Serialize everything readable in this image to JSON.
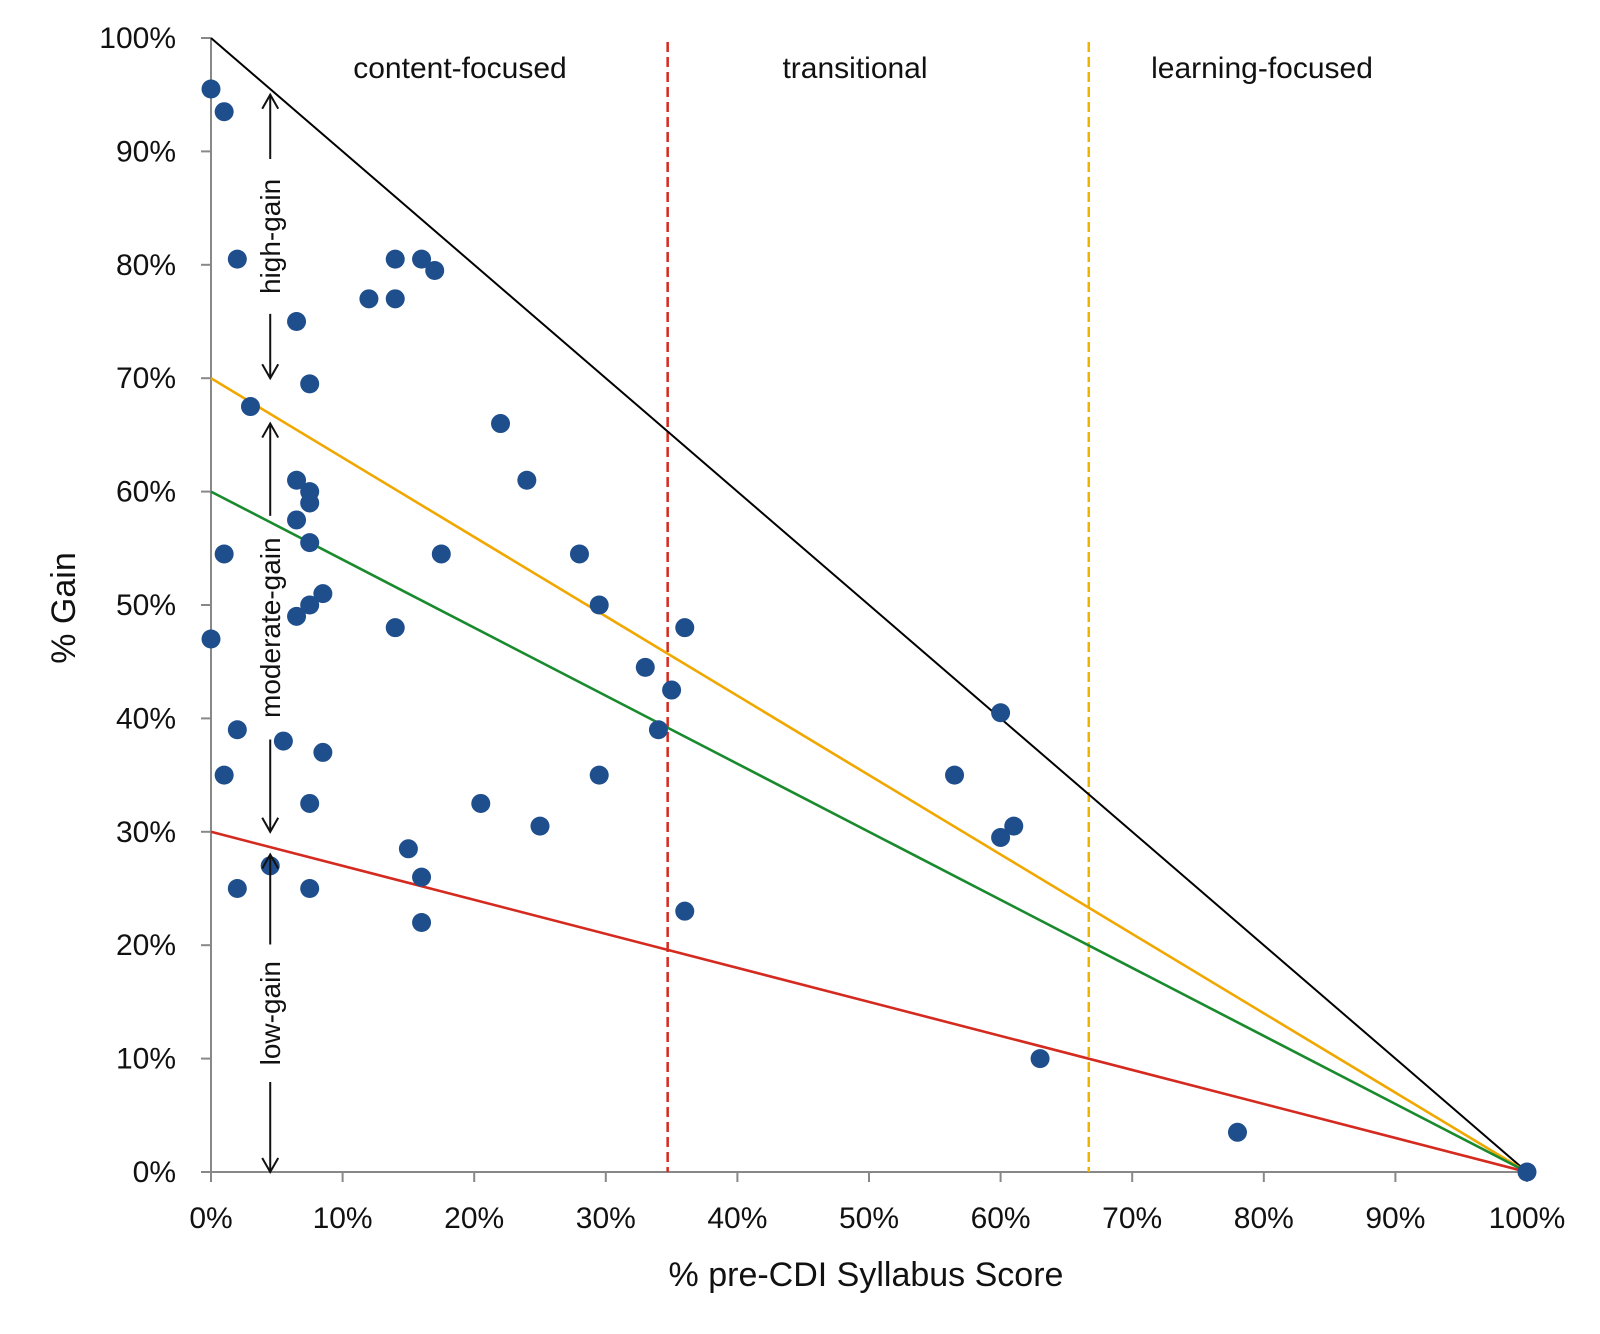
{
  "chart_data": {
    "type": "scatter",
    "title": "",
    "xlabel": "% pre-CDI Syllabus Score",
    "ylabel": "% Gain",
    "xlim": [
      0,
      100
    ],
    "ylim": [
      0,
      100
    ],
    "x_ticks": [
      "0%",
      "10%",
      "20%",
      "30%",
      "40%",
      "50%",
      "60%",
      "70%",
      "80%",
      "90%",
      "100%"
    ],
    "y_ticks": [
      "0%",
      "10%",
      "20%",
      "30%",
      "40%",
      "50%",
      "60%",
      "70%",
      "80%",
      "90%",
      "100%"
    ],
    "grid": false,
    "point_color": "#1f4e8c",
    "points": [
      [
        0,
        95.5
      ],
      [
        1,
        93.5
      ],
      [
        2,
        80.5
      ],
      [
        14,
        80.5
      ],
      [
        16,
        80.5
      ],
      [
        17,
        79.5
      ],
      [
        12,
        77
      ],
      [
        14,
        77
      ],
      [
        6.5,
        75
      ],
      [
        7.5,
        69.5
      ],
      [
        3,
        67.5
      ],
      [
        22,
        66
      ],
      [
        6.5,
        61
      ],
      [
        7.5,
        60
      ],
      [
        24,
        61
      ],
      [
        7.5,
        59
      ],
      [
        6.5,
        57.5
      ],
      [
        7.5,
        55.5
      ],
      [
        1,
        54.5
      ],
      [
        17.5,
        54.5
      ],
      [
        28,
        54.5
      ],
      [
        8.5,
        51
      ],
      [
        7.5,
        50
      ],
      [
        29.5,
        50
      ],
      [
        6.5,
        49
      ],
      [
        14,
        48
      ],
      [
        36,
        48
      ],
      [
        0,
        47
      ],
      [
        33,
        44.5
      ],
      [
        35,
        42.5
      ],
      [
        60,
        40.5
      ],
      [
        2,
        39
      ],
      [
        34,
        39
      ],
      [
        5.5,
        38
      ],
      [
        8.5,
        37
      ],
      [
        1,
        35
      ],
      [
        29.5,
        35
      ],
      [
        56.5,
        35
      ],
      [
        7.5,
        32.5
      ],
      [
        20.5,
        32.5
      ],
      [
        25,
        30.5
      ],
      [
        61,
        30.5
      ],
      [
        60,
        29.5
      ],
      [
        15,
        28.5
      ],
      [
        4.5,
        27
      ],
      [
        16,
        26
      ],
      [
        2,
        25
      ],
      [
        7.5,
        25
      ],
      [
        36,
        23
      ],
      [
        16,
        22
      ],
      [
        63,
        10
      ],
      [
        78,
        3.5
      ],
      [
        100,
        0
      ]
    ],
    "lines": [
      {
        "name": "maximum gain",
        "color": "#000000",
        "x": [
          0,
          100
        ],
        "y": [
          100,
          0
        ]
      },
      {
        "name": "high-gain threshold",
        "color": "#f0a800",
        "x": [
          0,
          100
        ],
        "y": [
          70,
          0
        ]
      },
      {
        "name": "mean gain",
        "color": "#1a8a2e",
        "x": [
          0,
          100
        ],
        "y": [
          60,
          0
        ]
      },
      {
        "name": "low-gain threshold",
        "color": "#d42a1f",
        "x": [
          0,
          100
        ],
        "y": [
          30,
          0
        ]
      }
    ],
    "vertical_lines": [
      {
        "name": "content-transitional boundary",
        "x": 34.7,
        "color": "#d42a1f",
        "style": "dashed"
      },
      {
        "name": "transitional-learning boundary",
        "x": 66.7,
        "color": "#f0b400",
        "style": "dashed"
      }
    ],
    "regions": [
      "content-focused",
      "transitional",
      "learning-focused"
    ],
    "gain_bands": [
      {
        "label": "high-gain",
        "from": 70,
        "to": 95
      },
      {
        "label": "moderate-gain",
        "from": 30,
        "to": 66
      },
      {
        "label": "low-gain",
        "from": 0,
        "to": 28
      }
    ],
    "band_arrow_x": 4.5
  }
}
